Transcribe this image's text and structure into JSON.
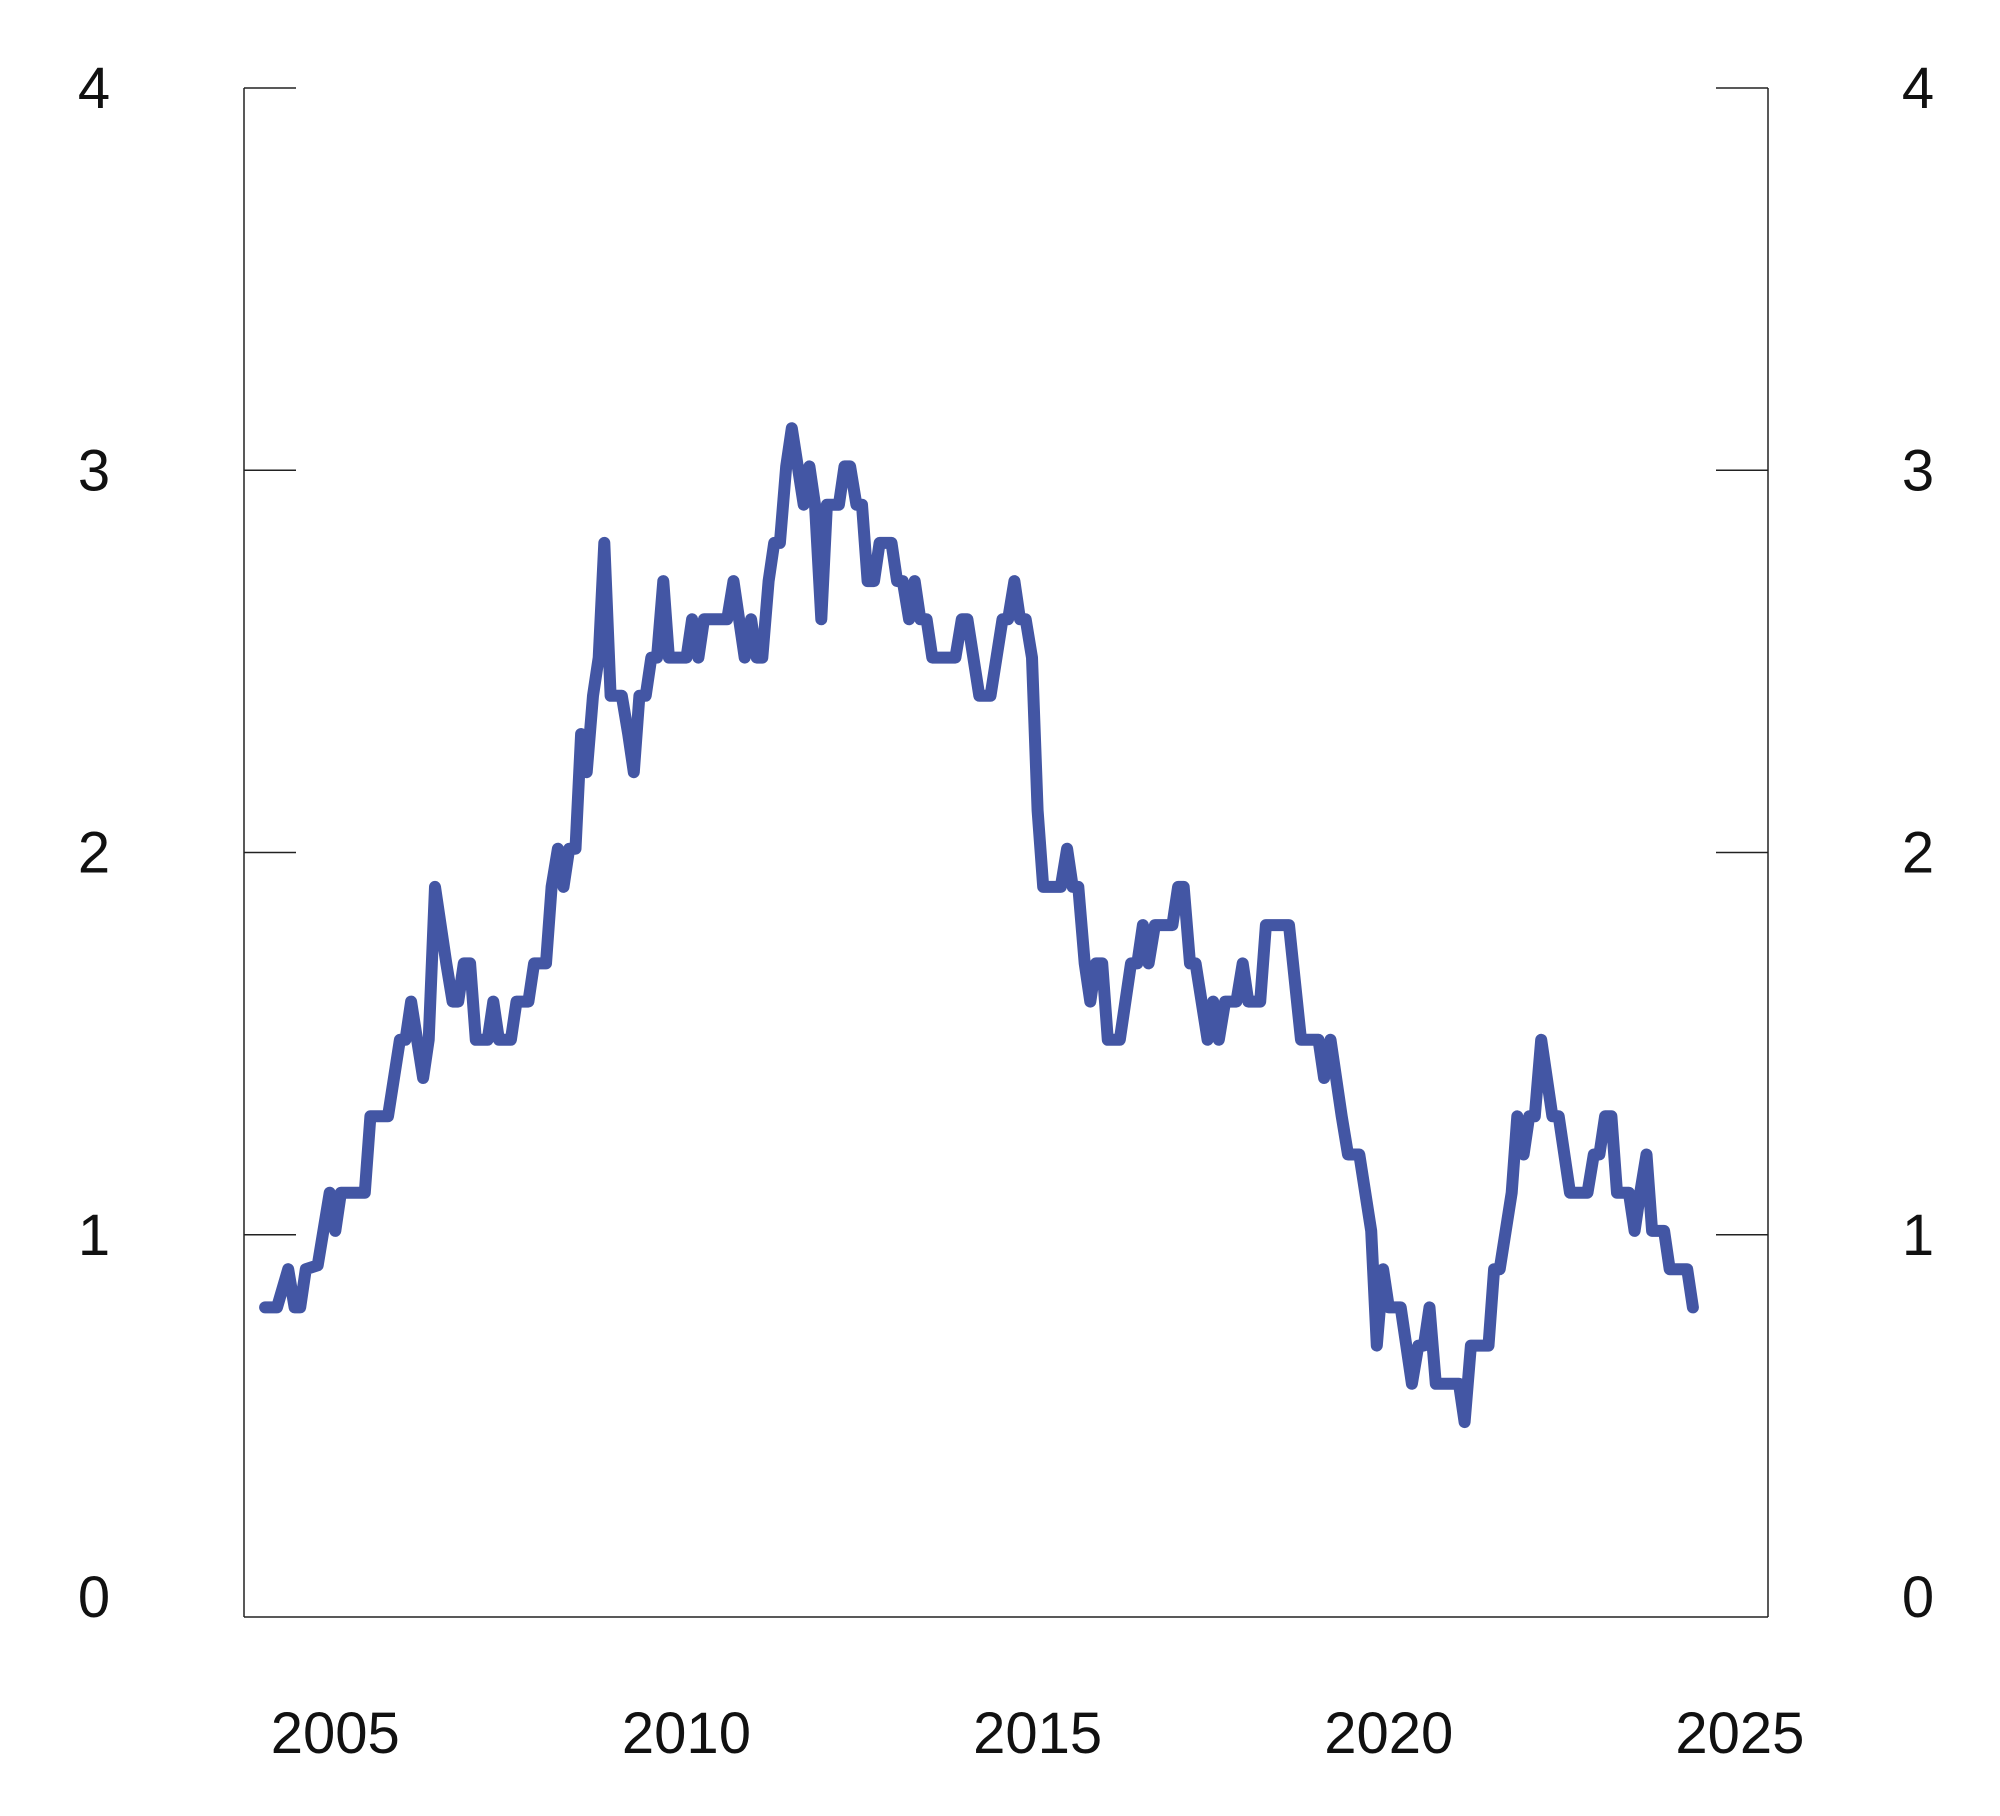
{
  "chart_data": {
    "type": "line",
    "title": "",
    "xlabel": "",
    "ylabel": "",
    "xlim": [
      2003.7,
      2025.4
    ],
    "ylim": [
      0,
      4
    ],
    "x_ticks": [
      "2005",
      "2010",
      "2015",
      "2020",
      "2025"
    ],
    "x_tick_values": [
      2005,
      2010,
      2015,
      2020,
      2025
    ],
    "y_ticks_left": [
      "0",
      "1",
      "2",
      "3",
      "4"
    ],
    "y_ticks_right": [
      "0",
      "1",
      "2",
      "3",
      "4"
    ],
    "y_tick_values": [
      0,
      1,
      2,
      3,
      4
    ],
    "grid": false,
    "line_color": "#4356a4",
    "series": [
      {
        "points": [
          [
            2004.0,
            0.81
          ],
          [
            2004.17,
            0.81
          ],
          [
            2004.33,
            0.91
          ],
          [
            2004.42,
            0.81
          ],
          [
            2004.5,
            0.81
          ],
          [
            2004.58,
            0.91
          ],
          [
            2004.75,
            0.92
          ],
          [
            2004.92,
            1.11
          ],
          [
            2005.0,
            1.01
          ],
          [
            2005.08,
            1.11
          ],
          [
            2005.25,
            1.11
          ],
          [
            2005.42,
            1.11
          ],
          [
            2005.5,
            1.31
          ],
          [
            2005.75,
            1.31
          ],
          [
            2005.92,
            1.51
          ],
          [
            2006.0,
            1.51
          ],
          [
            2006.08,
            1.61
          ],
          [
            2006.25,
            1.41
          ],
          [
            2006.33,
            1.51
          ],
          [
            2006.42,
            1.91
          ],
          [
            2006.58,
            1.71
          ],
          [
            2006.67,
            1.61
          ],
          [
            2006.75,
            1.61
          ],
          [
            2006.83,
            1.71
          ],
          [
            2006.92,
            1.71
          ],
          [
            2007.0,
            1.51
          ],
          [
            2007.17,
            1.51
          ],
          [
            2007.25,
            1.61
          ],
          [
            2007.33,
            1.51
          ],
          [
            2007.5,
            1.51
          ],
          [
            2007.58,
            1.61
          ],
          [
            2007.75,
            1.61
          ],
          [
            2007.83,
            1.71
          ],
          [
            2008.0,
            1.71
          ],
          [
            2008.08,
            1.91
          ],
          [
            2008.17,
            2.01
          ],
          [
            2008.25,
            1.91
          ],
          [
            2008.33,
            2.01
          ],
          [
            2008.42,
            2.01
          ],
          [
            2008.5,
            2.31
          ],
          [
            2008.58,
            2.21
          ],
          [
            2008.67,
            2.41
          ],
          [
            2008.75,
            2.51
          ],
          [
            2008.83,
            2.81
          ],
          [
            2008.92,
            2.41
          ],
          [
            2009.0,
            2.41
          ],
          [
            2009.08,
            2.41
          ],
          [
            2009.17,
            2.31
          ],
          [
            2009.25,
            2.21
          ],
          [
            2009.33,
            2.41
          ],
          [
            2009.42,
            2.41
          ],
          [
            2009.5,
            2.51
          ],
          [
            2009.58,
            2.51
          ],
          [
            2009.67,
            2.71
          ],
          [
            2009.75,
            2.51
          ],
          [
            2009.83,
            2.51
          ],
          [
            2010.0,
            2.51
          ],
          [
            2010.08,
            2.61
          ],
          [
            2010.17,
            2.51
          ],
          [
            2010.25,
            2.61
          ],
          [
            2010.42,
            2.61
          ],
          [
            2010.5,
            2.61
          ],
          [
            2010.58,
            2.61
          ],
          [
            2010.67,
            2.71
          ],
          [
            2010.83,
            2.51
          ],
          [
            2010.92,
            2.61
          ],
          [
            2011.0,
            2.51
          ],
          [
            2011.08,
            2.51
          ],
          [
            2011.17,
            2.71
          ],
          [
            2011.25,
            2.81
          ],
          [
            2011.33,
            2.81
          ],
          [
            2011.42,
            3.01
          ],
          [
            2011.5,
            3.11
          ],
          [
            2011.67,
            2.91
          ],
          [
            2011.75,
            3.01
          ],
          [
            2011.83,
            2.91
          ],
          [
            2011.92,
            2.61
          ],
          [
            2012.0,
            2.91
          ],
          [
            2012.08,
            2.91
          ],
          [
            2012.17,
            2.91
          ],
          [
            2012.25,
            3.01
          ],
          [
            2012.33,
            3.01
          ],
          [
            2012.42,
            2.91
          ],
          [
            2012.5,
            2.91
          ],
          [
            2012.58,
            2.71
          ],
          [
            2012.67,
            2.71
          ],
          [
            2012.75,
            2.81
          ],
          [
            2012.83,
            2.81
          ],
          [
            2012.92,
            2.81
          ],
          [
            2013.0,
            2.71
          ],
          [
            2013.08,
            2.71
          ],
          [
            2013.17,
            2.61
          ],
          [
            2013.25,
            2.71
          ],
          [
            2013.33,
            2.61
          ],
          [
            2013.42,
            2.61
          ],
          [
            2013.5,
            2.51
          ],
          [
            2013.67,
            2.51
          ],
          [
            2013.83,
            2.51
          ],
          [
            2013.92,
            2.61
          ],
          [
            2014.0,
            2.61
          ],
          [
            2014.17,
            2.41
          ],
          [
            2014.33,
            2.41
          ],
          [
            2014.5,
            2.61
          ],
          [
            2014.58,
            2.61
          ],
          [
            2014.67,
            2.71
          ],
          [
            2014.75,
            2.61
          ],
          [
            2014.83,
            2.61
          ],
          [
            2014.92,
            2.51
          ],
          [
            2015.0,
            2.11
          ],
          [
            2015.08,
            1.91
          ],
          [
            2015.25,
            1.91
          ],
          [
            2015.33,
            1.91
          ],
          [
            2015.42,
            2.01
          ],
          [
            2015.5,
            1.91
          ],
          [
            2015.58,
            1.91
          ],
          [
            2015.67,
            1.71
          ],
          [
            2015.75,
            1.61
          ],
          [
            2015.83,
            1.71
          ],
          [
            2015.92,
            1.71
          ],
          [
            2016.0,
            1.51
          ],
          [
            2016.17,
            1.51
          ],
          [
            2016.33,
            1.71
          ],
          [
            2016.42,
            1.71
          ],
          [
            2016.5,
            1.81
          ],
          [
            2016.58,
            1.71
          ],
          [
            2016.67,
            1.81
          ],
          [
            2016.75,
            1.81
          ],
          [
            2016.83,
            1.81
          ],
          [
            2016.92,
            1.81
          ],
          [
            2017.0,
            1.91
          ],
          [
            2017.08,
            1.91
          ],
          [
            2017.17,
            1.71
          ],
          [
            2017.25,
            1.71
          ],
          [
            2017.42,
            1.51
          ],
          [
            2017.5,
            1.61
          ],
          [
            2017.58,
            1.51
          ],
          [
            2017.67,
            1.61
          ],
          [
            2017.75,
            1.61
          ],
          [
            2017.83,
            1.61
          ],
          [
            2017.92,
            1.71
          ],
          [
            2018.0,
            1.61
          ],
          [
            2018.08,
            1.61
          ],
          [
            2018.17,
            1.61
          ],
          [
            2018.25,
            1.81
          ],
          [
            2018.42,
            1.81
          ],
          [
            2018.58,
            1.81
          ],
          [
            2018.75,
            1.51
          ],
          [
            2018.83,
            1.51
          ],
          [
            2018.92,
            1.51
          ],
          [
            2019.0,
            1.51
          ],
          [
            2019.08,
            1.41
          ],
          [
            2019.17,
            1.51
          ],
          [
            2019.33,
            1.31
          ],
          [
            2019.42,
            1.21
          ],
          [
            2019.5,
            1.21
          ],
          [
            2019.58,
            1.21
          ],
          [
            2019.75,
            1.01
          ],
          [
            2019.83,
            0.71
          ],
          [
            2019.92,
            0.91
          ],
          [
            2020.0,
            0.81
          ],
          [
            2020.08,
            0.81
          ],
          [
            2020.17,
            0.81
          ],
          [
            2020.33,
            0.61
          ],
          [
            2020.42,
            0.71
          ],
          [
            2020.5,
            0.71
          ],
          [
            2020.58,
            0.81
          ],
          [
            2020.67,
            0.61
          ],
          [
            2020.75,
            0.61
          ],
          [
            2020.83,
            0.61
          ],
          [
            2020.92,
            0.61
          ],
          [
            2021.0,
            0.61
          ],
          [
            2021.08,
            0.51
          ],
          [
            2021.17,
            0.71
          ],
          [
            2021.25,
            0.71
          ],
          [
            2021.33,
            0.71
          ],
          [
            2021.42,
            0.71
          ],
          [
            2021.5,
            0.91
          ],
          [
            2021.58,
            0.91
          ],
          [
            2021.75,
            1.11
          ],
          [
            2021.83,
            1.31
          ],
          [
            2021.92,
            1.21
          ],
          [
            2022.0,
            1.31
          ],
          [
            2022.08,
            1.31
          ],
          [
            2022.17,
            1.51
          ],
          [
            2022.33,
            1.31
          ],
          [
            2022.42,
            1.31
          ],
          [
            2022.58,
            1.11
          ],
          [
            2022.67,
            1.11
          ],
          [
            2022.75,
            1.11
          ],
          [
            2022.83,
            1.11
          ],
          [
            2022.92,
            1.21
          ],
          [
            2023.0,
            1.21
          ],
          [
            2023.08,
            1.31
          ],
          [
            2023.17,
            1.31
          ],
          [
            2023.25,
            1.11
          ],
          [
            2023.33,
            1.11
          ],
          [
            2023.42,
            1.11
          ],
          [
            2023.5,
            1.01
          ],
          [
            2023.58,
            1.11
          ],
          [
            2023.67,
            1.21
          ],
          [
            2023.75,
            1.01
          ],
          [
            2023.83,
            1.01
          ],
          [
            2023.92,
            1.01
          ],
          [
            2024.0,
            0.91
          ],
          [
            2024.08,
            0.91
          ],
          [
            2024.17,
            0.91
          ],
          [
            2024.25,
            0.91
          ],
          [
            2024.33,
            0.81
          ]
        ]
      }
    ]
  }
}
